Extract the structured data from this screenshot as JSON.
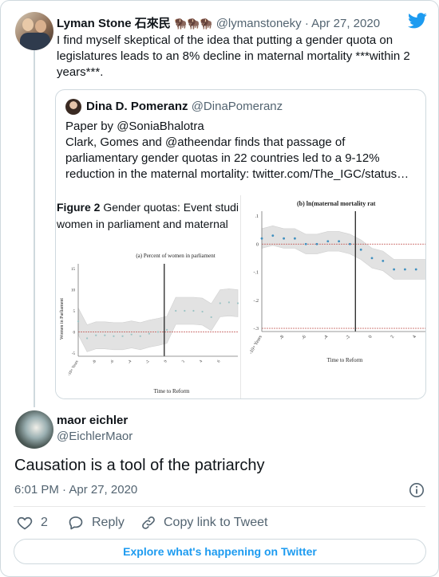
{
  "tweet1": {
    "name": "Lyman Stone 石來民",
    "emoji": "🦬🦬🦬",
    "handle": "@lymanstoneky",
    "date": "· Apr 27, 2020",
    "text_line1": "I find myself skeptical of the idea that putting a gender quota on",
    "text_line2": "legislatures leads to an 8% decline in maternal mortality ***within 2",
    "text_line3": "years***."
  },
  "quoted": {
    "name": "Dina D. Pomeranz",
    "handle": "@DinaPomeranz",
    "line1": "Paper by @SoniaBhalotra",
    "line2": "Clark, Gomes and @atheendar finds that passage of",
    "line3": "parliamentary gender quotas in 22 countries led to a 9-12%",
    "line4": "reduction in the maternal mortality: twitter.com/The_IGC/status…",
    "figure": {
      "caption_bold": "Figure 2",
      "caption_line1": " Gender quotas: Event studi",
      "caption_line2": "women in parliament and maternal",
      "left_title": "(a) Percent of women in parliament",
      "left_ylabel": "Women in Parliament",
      "left_xlabel": "Time to Reform",
      "right_title": "(b) ln(maternal mortality rat",
      "right_xlabel": "Time to Reform"
    }
  },
  "tweet2": {
    "name": "maor eichler",
    "handle": "@EichlerMaor",
    "text": "Causation is a tool of the patriarchy",
    "time": "6:01 PM · Apr 27, 2020",
    "likes": "2",
    "reply_label": "Reply",
    "copy_label": "Copy link to Tweet"
  },
  "footer": {
    "explore_label": "Explore what's happening on Twitter"
  },
  "colors": {
    "brand": "#1d9bf0",
    "text": "#0f1419",
    "muted": "#536471",
    "border": "#cfd9de"
  },
  "chart_data": [
    {
      "type": "scatter",
      "title": "(a) Percent of women in parliament",
      "xlabel": "Time to Reform",
      "ylabel": "Women in Parliament",
      "x_ticks": [
        "-10+ Years",
        "-8",
        "-6",
        "-4",
        "-2",
        "0",
        "2",
        "4",
        "6"
      ],
      "y_ticks": [
        15,
        10,
        5,
        0,
        -5
      ],
      "ylim": [
        -5,
        15
      ],
      "x": [
        -10,
        -9,
        -8,
        -7,
        -6,
        -5,
        -4,
        -3,
        -2,
        -1,
        0,
        1,
        2,
        3,
        4,
        5,
        6,
        7,
        8
      ],
      "values": [
        2.5,
        -1.5,
        -0.8,
        -0.8,
        -1.0,
        -1.0,
        -0.6,
        -1.0,
        -0.4,
        0.0,
        0.5,
        5.0,
        5.0,
        5.0,
        4.8,
        3.5,
        6.8,
        7.0,
        6.8
      ]
    },
    {
      "type": "scatter",
      "title": "(b) ln(maternal mortality rat",
      "xlabel": "Time to Reform",
      "x_ticks": [
        "-10+ Years",
        "-8",
        "-6",
        "-4",
        "-2",
        "0",
        "2",
        "4"
      ],
      "y_ticks": [
        0.1,
        0,
        -0.1,
        -0.2,
        -0.3
      ],
      "ylim": [
        -0.3,
        0.1
      ],
      "x": [
        -10,
        -9,
        -8,
        -7,
        -6,
        -5,
        -4,
        -3,
        -2,
        -1,
        0,
        1,
        2,
        3,
        4,
        5
      ],
      "values": [
        0.02,
        0.03,
        0.02,
        0.02,
        0.0,
        0.0,
        0.01,
        0.01,
        0.0,
        -0.02,
        -0.05,
        -0.06,
        -0.09,
        -0.09,
        -0.09,
        -0.09
      ]
    }
  ]
}
